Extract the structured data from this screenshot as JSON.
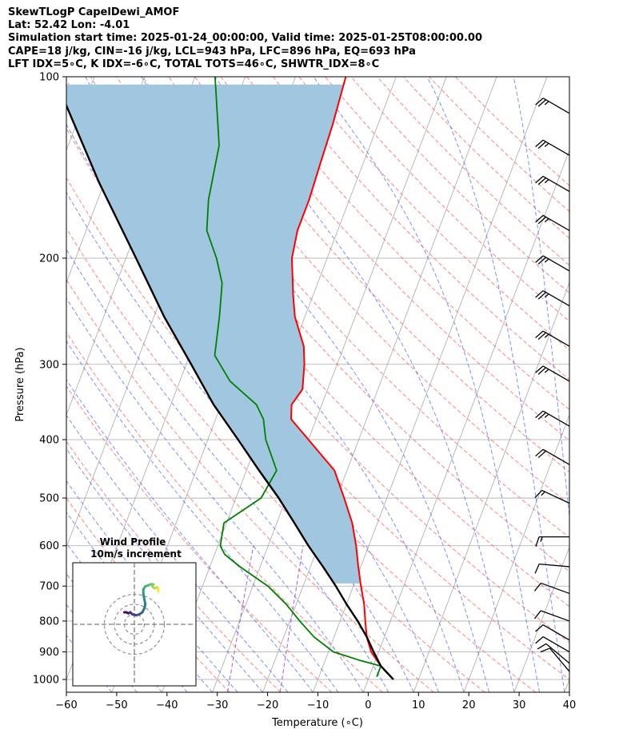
{
  "header": {
    "line1": "SkewTLogP CapelDewi_AMOF",
    "line2": "Lat: 52.42   Lon: -4.01",
    "line3": "Simulation start time: 2025-01-24_00:00:00, Valid time: 2025-01-25T08:00:00.00",
    "line4": "CAPE=18 j/kg, CIN=-16 j/kg, LCL=943 hPa, LFC=896 hPa, EQ=693 hPa",
    "line5": "LFT IDX=5∘C, K IDX=-6∘C, TOTAL TOTS=46∘C, SHWTR_IDX=8∘C"
  },
  "chart_data": [
    {
      "type": "line",
      "subtype": "skew-T log-P",
      "xlabel": "Temperature (∘C)",
      "ylabel": "Pressure (hPa)",
      "xlim": [
        -60,
        40
      ],
      "ylim": [
        1050,
        100
      ],
      "y_scale": "log",
      "x_ticks": [
        "−60",
        "−50",
        "−40",
        "−30",
        "−20",
        "−10",
        "0",
        "10",
        "20",
        "30",
        "40"
      ],
      "y_ticks": [
        "100",
        "200",
        "300",
        "400",
        "500",
        "600",
        "700",
        "800",
        "900",
        "1000"
      ],
      "grid": true,
      "series": [
        {
          "key": "temperature",
          "color": "#ff0000",
          "points": [
            [
              1000,
              5
            ],
            [
              950,
              1.5
            ],
            [
              900,
              -1.5
            ],
            [
              850,
              -3.5
            ],
            [
              800,
              -5
            ],
            [
              750,
              -6.5
            ],
            [
              700,
              -8.5
            ],
            [
              650,
              -10.5
            ],
            [
              600,
              -12.5
            ],
            [
              550,
              -15
            ],
            [
              500,
              -18.5
            ],
            [
              450,
              -22.5
            ],
            [
              400,
              -30
            ],
            [
              370,
              -35
            ],
            [
              350,
              -36
            ],
            [
              330,
              -35
            ],
            [
              300,
              -36.5
            ],
            [
              280,
              -38
            ],
            [
              250,
              -42
            ],
            [
              230,
              -44
            ],
            [
              200,
              -47
            ],
            [
              180,
              -48
            ],
            [
              160,
              -48
            ],
            [
              140,
              -48.5
            ],
            [
              120,
              -49
            ],
            [
              100,
              -50
            ]
          ]
        },
        {
          "key": "dewpoint",
          "color": "#008000",
          "points": [
            [
              990,
              1.5
            ],
            [
              950,
              1.5
            ],
            [
              930,
              -3
            ],
            [
              900,
              -9
            ],
            [
              850,
              -14
            ],
            [
              800,
              -18
            ],
            [
              750,
              -22
            ],
            [
              700,
              -27
            ],
            [
              650,
              -34
            ],
            [
              620,
              -38
            ],
            [
              600,
              -39.5
            ],
            [
              550,
              -40.5
            ],
            [
              500,
              -35
            ],
            [
              450,
              -34
            ],
            [
              400,
              -38.5
            ],
            [
              370,
              -40.5
            ],
            [
              350,
              -43
            ],
            [
              320,
              -50
            ],
            [
              290,
              -55
            ],
            [
              250,
              -57
            ],
            [
              220,
              -59
            ],
            [
              200,
              -62
            ],
            [
              180,
              -66
            ],
            [
              160,
              -68
            ],
            [
              130,
              -70
            ],
            [
              100,
              -76
            ]
          ]
        },
        {
          "key": "parcel",
          "color": "#000000",
          "points": [
            [
              1000,
              5
            ],
            [
              950,
              1.5
            ],
            [
              900,
              -1
            ],
            [
              850,
              -3.5
            ],
            [
              800,
              -6.5
            ],
            [
              750,
              -10
            ],
            [
              700,
              -13.5
            ],
            [
              650,
              -17.5
            ],
            [
              600,
              -22
            ],
            [
              550,
              -26.5
            ],
            [
              500,
              -31.5
            ],
            [
              450,
              -37.5
            ],
            [
              400,
              -44
            ],
            [
              350,
              -51.5
            ],
            [
              300,
              -59
            ],
            [
              250,
              -68
            ],
            [
              200,
              -78
            ],
            [
              150,
              -91
            ],
            [
              100,
              -108
            ]
          ]
        }
      ],
      "fill": {
        "key": "cape",
        "color": "#a1c6df",
        "between": [
          "parcel",
          "temperature"
        ],
        "from_hPa": 693,
        "to_hPa": 100
      },
      "background_lines": {
        "isotherms": "#a9a9a9",
        "dry_adiabats": "#ff5a5a",
        "moist_adiabats": "#4d6bff",
        "mixing_ratio": "#9932cc"
      },
      "wind_barbs": {
        "color": "#000000",
        "position": "right",
        "levels": [
          {
            "p": 115,
            "ws": 25,
            "wd": 300
          },
          {
            "p": 135,
            "ws": 25,
            "wd": 300
          },
          {
            "p": 155,
            "ws": 25,
            "wd": 300
          },
          {
            "p": 180,
            "ws": 25,
            "wd": 300
          },
          {
            "p": 210,
            "ws": 25,
            "wd": 300
          },
          {
            "p": 240,
            "ws": 25,
            "wd": 300
          },
          {
            "p": 280,
            "ws": 25,
            "wd": 300
          },
          {
            "p": 320,
            "ws": 25,
            "wd": 300
          },
          {
            "p": 380,
            "ws": 25,
            "wd": 300
          },
          {
            "p": 440,
            "ws": 20,
            "wd": 300
          },
          {
            "p": 510,
            "ws": 15,
            "wd": 295
          },
          {
            "p": 580,
            "ws": 15,
            "wd": 270
          },
          {
            "p": 650,
            "ws": 10,
            "wd": 275
          },
          {
            "p": 720,
            "ws": 10,
            "wd": 290
          },
          {
            "p": 800,
            "ws": 10,
            "wd": 290
          },
          {
            "p": 860,
            "ws": 10,
            "wd": 300
          },
          {
            "p": 900,
            "ws": 10,
            "wd": 300
          },
          {
            "p": 940,
            "ws": 10,
            "wd": 310
          },
          {
            "p": 970,
            "ws": 10,
            "wd": 320
          }
        ]
      }
    },
    {
      "type": "line",
      "subtype": "hodograph",
      "title": "Wind Profile",
      "subtitle": "10m/s increment",
      "range_circles_ms": [
        10,
        20,
        30
      ],
      "points": [
        [
          -10,
          12
        ],
        [
          -8,
          12
        ],
        [
          -6,
          11
        ],
        [
          -4,
          12
        ],
        [
          -2,
          10
        ],
        [
          2,
          9
        ],
        [
          5,
          10
        ],
        [
          8,
          12
        ],
        [
          10,
          16
        ],
        [
          11,
          20
        ],
        [
          10,
          25
        ],
        [
          9,
          30
        ],
        [
          9,
          35
        ],
        [
          11,
          38
        ],
        [
          14,
          39
        ],
        [
          16,
          40
        ],
        [
          19,
          40
        ],
        [
          18,
          38
        ],
        [
          20,
          36
        ],
        [
          23,
          37
        ],
        [
          24,
          35
        ],
        [
          24,
          33
        ]
      ]
    }
  ]
}
